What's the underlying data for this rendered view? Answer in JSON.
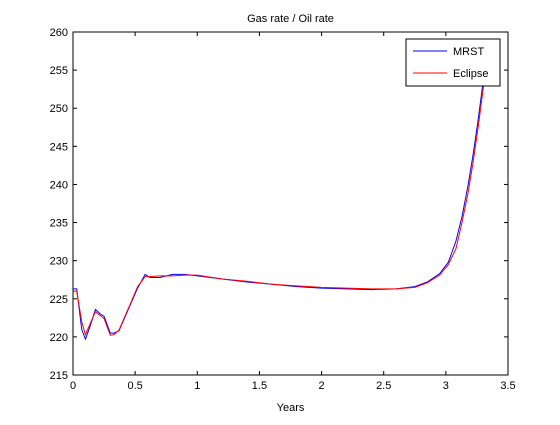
{
  "chart_data": {
    "type": "line",
    "title": "Gas rate / Oil rate",
    "xlabel": "Years",
    "ylabel": "",
    "xlim": [
      0,
      3.5
    ],
    "ylim": [
      215,
      260
    ],
    "xticks": [
      0,
      0.5,
      1,
      1.5,
      2,
      2.5,
      3,
      3.5
    ],
    "xtick_labels": [
      "0",
      "0.5",
      "1",
      "1.5",
      "2",
      "2.5",
      "3",
      "3.5"
    ],
    "yticks": [
      215,
      220,
      225,
      230,
      235,
      240,
      245,
      250,
      255,
      260
    ],
    "ytick_labels": [
      "215",
      "220",
      "225",
      "230",
      "235",
      "240",
      "245",
      "250",
      "255",
      "260"
    ],
    "grid": false,
    "legend_position": "top-right",
    "series": [
      {
        "name": "MRST",
        "color": "#0000ff",
        "x": [
          0,
          0.03,
          0.07,
          0.1,
          0.14,
          0.18,
          0.22,
          0.25,
          0.3,
          0.33,
          0.37,
          0.45,
          0.52,
          0.58,
          0.62,
          0.7,
          0.8,
          0.9,
          1.0,
          1.2,
          1.4,
          1.6,
          1.8,
          2.0,
          2.2,
          2.4,
          2.6,
          2.75,
          2.85,
          2.95,
          3.02,
          3.08,
          3.13,
          3.18,
          3.22,
          3.26,
          3.3,
          3.32
        ],
        "y": [
          226.3,
          226.3,
          221.0,
          219.7,
          221.5,
          223.6,
          223.0,
          222.7,
          220.5,
          220.5,
          220.8,
          223.8,
          226.4,
          228.2,
          227.8,
          227.8,
          228.2,
          228.2,
          228.0,
          227.6,
          227.2,
          226.9,
          226.6,
          226.4,
          226.3,
          226.2,
          226.3,
          226.6,
          227.2,
          228.3,
          229.8,
          232.5,
          235.8,
          240.0,
          244.0,
          248.5,
          253.5,
          255.5
        ]
      },
      {
        "name": "Eclipse",
        "color": "#ff0000",
        "x": [
          0,
          0.03,
          0.07,
          0.1,
          0.14,
          0.18,
          0.22,
          0.25,
          0.3,
          0.33,
          0.37,
          0.45,
          0.52,
          0.58,
          0.62,
          0.7,
          0.8,
          0.9,
          1.0,
          1.2,
          1.4,
          1.6,
          1.8,
          2.0,
          2.2,
          2.4,
          2.6,
          2.75,
          2.85,
          2.95,
          3.02,
          3.08,
          3.13,
          3.18,
          3.22,
          3.26,
          3.3,
          3.32
        ],
        "y": [
          226.0,
          226.0,
          222.0,
          220.3,
          221.8,
          223.3,
          222.8,
          222.4,
          220.2,
          220.3,
          220.9,
          223.9,
          226.6,
          227.9,
          227.9,
          228.0,
          228.0,
          228.1,
          228.1,
          227.6,
          227.3,
          226.9,
          226.7,
          226.5,
          226.4,
          226.3,
          226.3,
          226.5,
          227.1,
          228.1,
          229.5,
          231.5,
          235.0,
          239.0,
          243.0,
          247.5,
          252.5,
          255.0
        ]
      }
    ]
  }
}
